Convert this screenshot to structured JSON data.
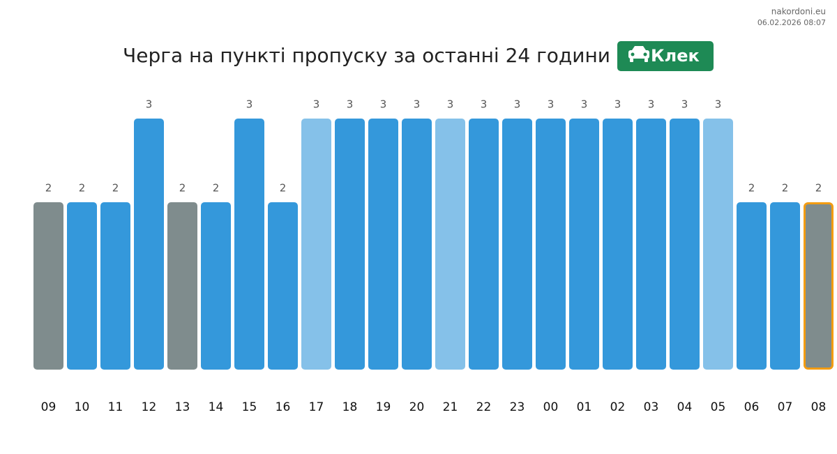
{
  "header": {
    "site": "nakordoni.eu",
    "timestamp": "06.02.2026 08:07"
  },
  "chart_data": {
    "type": "bar",
    "title": "Черга на пункті пропуску за останні 24 години",
    "badge": "Клек",
    "badge_color": "#1e8a55",
    "categories": [
      "09",
      "10",
      "11",
      "12",
      "13",
      "14",
      "15",
      "16",
      "17",
      "18",
      "19",
      "20",
      "21",
      "22",
      "23",
      "00",
      "01",
      "02",
      "03",
      "04",
      "05",
      "06",
      "07",
      "08"
    ],
    "values": [
      2,
      2,
      2,
      3,
      2,
      2,
      3,
      2,
      3,
      3,
      3,
      3,
      3,
      3,
      3,
      3,
      3,
      3,
      3,
      3,
      3,
      2,
      2,
      2
    ],
    "colors": [
      "#7f8c8d",
      "#3498db",
      "#3498db",
      "#3498db",
      "#7f8c8d",
      "#3498db",
      "#3498db",
      "#3498db",
      "#85c1e9",
      "#3498db",
      "#3498db",
      "#3498db",
      "#85c1e9",
      "#3498db",
      "#3498db",
      "#3498db",
      "#3498db",
      "#3498db",
      "#3498db",
      "#3498db",
      "#85c1e9",
      "#3498db",
      "#3498db",
      "#7f8c8d"
    ],
    "highlight": {
      "category": "08",
      "color": "#f39c12"
    }
  }
}
